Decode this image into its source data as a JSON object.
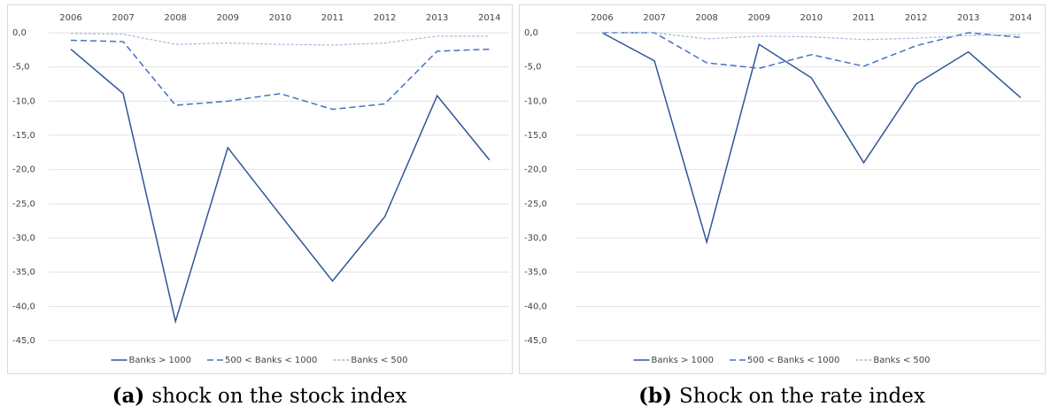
{
  "chart_data": [
    {
      "type": "line",
      "categories": [
        "2006",
        "2007",
        "2008",
        "2009",
        "2010",
        "2011",
        "2012",
        "2013",
        "2014"
      ],
      "series": [
        {
          "name": "Banks > 1000",
          "color": "#2f5597",
          "dash": "solid",
          "values": [
            -2.4,
            -8.9,
            -42.2,
            -16.8,
            -26.6,
            -36.3,
            -26.9,
            -9.2,
            -18.6
          ]
        },
        {
          "name": "500 < Banks < 1000",
          "color": "#4472c4",
          "dash": "dashed",
          "values": [
            -1.1,
            -1.3,
            -10.6,
            -10.0,
            -8.9,
            -11.2,
            -10.4,
            -2.7,
            -2.4
          ]
        },
        {
          "name": "Banks < 500",
          "color": "#a5b8dc",
          "dash": "fine",
          "values": [
            -0.1,
            -0.2,
            -1.7,
            -1.5,
            -1.7,
            -1.8,
            -1.5,
            -0.5,
            -0.5
          ]
        }
      ],
      "ylim": [
        -45,
        0
      ],
      "yticks": [
        {
          "value": 0,
          "label": "0,0"
        },
        {
          "value": -5,
          "label": "-5,0"
        },
        {
          "value": -10,
          "label": "-10,0"
        },
        {
          "value": -15,
          "label": "-15,0"
        },
        {
          "value": -20,
          "label": "-20,0"
        },
        {
          "value": -25,
          "label": "-25,0"
        },
        {
          "value": -30,
          "label": "-30,0"
        },
        {
          "value": -35,
          "label": "-35,0"
        },
        {
          "value": -40,
          "label": "-40,0"
        },
        {
          "value": -45,
          "label": "-45,0"
        }
      ],
      "grid": true,
      "legend": "bottom",
      "caption": {
        "label": "(a)",
        "text": "shock on the stock index"
      }
    },
    {
      "type": "line",
      "categories": [
        "2006",
        "2007",
        "2008",
        "2009",
        "2010",
        "2011",
        "2012",
        "2013",
        "2014"
      ],
      "series": [
        {
          "name": "Banks > 1000",
          "color": "#2f5597",
          "dash": "solid",
          "values": [
            0,
            -4.1,
            -30.6,
            -1.7,
            -6.6,
            -19.0,
            -7.5,
            -2.8,
            -9.5
          ]
        },
        {
          "name": "500 < Banks < 1000",
          "color": "#4472c4",
          "dash": "dashed",
          "values": [
            0,
            0,
            -4.4,
            -5.2,
            -3.2,
            -4.9,
            -1.9,
            0,
            -0.7
          ]
        },
        {
          "name": "Banks < 500",
          "color": "#a5b8dc",
          "dash": "fine",
          "values": [
            0,
            0,
            -0.9,
            -0.5,
            -0.6,
            -1.0,
            -0.8,
            -0.4,
            -0.3
          ]
        }
      ],
      "ylim": [
        -45,
        0
      ],
      "yticks": [
        {
          "value": 0,
          "label": "0,0"
        },
        {
          "value": -5,
          "label": "-5,0"
        },
        {
          "value": -10,
          "label": "-10,0"
        },
        {
          "value": -15,
          "label": "-15,0"
        },
        {
          "value": -20,
          "label": "-20,0"
        },
        {
          "value": -25,
          "label": "-25,0"
        },
        {
          "value": -30,
          "label": "-30,0"
        },
        {
          "value": -35,
          "label": "-35,0"
        },
        {
          "value": -40,
          "label": "-40,0"
        },
        {
          "value": -45,
          "label": "-45,0"
        }
      ],
      "grid": true,
      "legend": "bottom",
      "caption": {
        "label": "(b)",
        "text": "Shock on the rate index"
      }
    }
  ]
}
